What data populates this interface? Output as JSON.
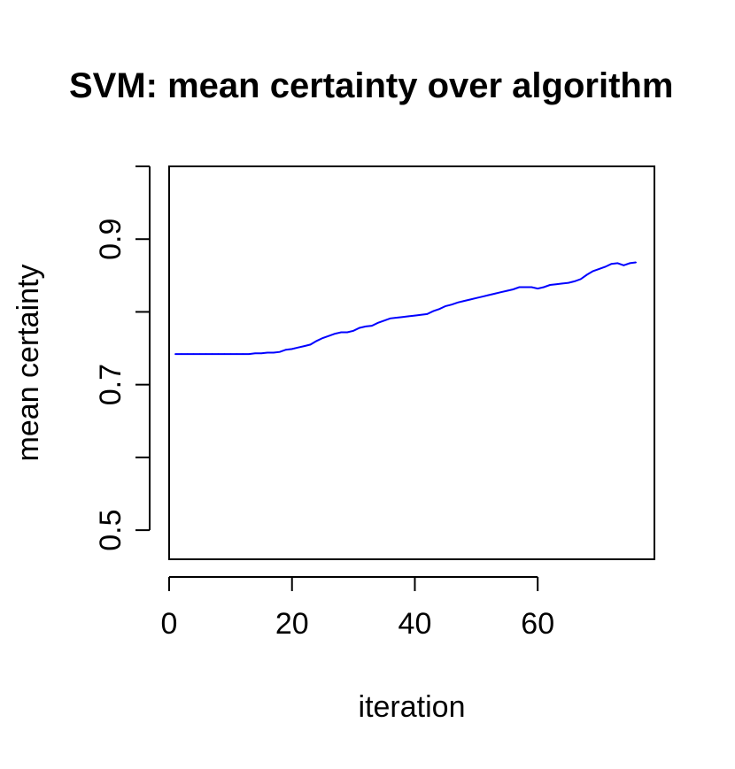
{
  "chart_data": {
    "type": "line",
    "title": "SVM: mean certainty over algorithm",
    "xlabel": "iteration",
    "ylabel": "mean certainty",
    "xlim": [
      0,
      79
    ],
    "ylim": [
      0.46,
      1.0
    ],
    "x_ticks": [
      0,
      20,
      40,
      60
    ],
    "y_ticks": [
      0.5,
      0.6,
      0.7,
      0.8,
      0.9,
      1.0
    ],
    "y_tick_labels": [
      "0.5",
      "",
      "0.7",
      "",
      "0.9",
      ""
    ],
    "grid": false,
    "line_color": "#0000ff",
    "series": [
      {
        "x": [
          1,
          2,
          3,
          4,
          5,
          6,
          7,
          8,
          9,
          10,
          11,
          12,
          13,
          14,
          15,
          16,
          17,
          18,
          19,
          20,
          21,
          22,
          23,
          24,
          25,
          26,
          27,
          28,
          29,
          30,
          31,
          32,
          33,
          34,
          35,
          36,
          37,
          38,
          39,
          40,
          41,
          42,
          43,
          44,
          45,
          46,
          47,
          48,
          49,
          50,
          51,
          52,
          53,
          54,
          55,
          56,
          57,
          58,
          59,
          60,
          61,
          62,
          63,
          64,
          65,
          66,
          67,
          68,
          69,
          70,
          71,
          72,
          73,
          74,
          75,
          76
        ],
        "values": [
          0.742,
          0.742,
          0.742,
          0.742,
          0.742,
          0.742,
          0.742,
          0.742,
          0.742,
          0.742,
          0.742,
          0.742,
          0.742,
          0.743,
          0.743,
          0.744,
          0.744,
          0.745,
          0.748,
          0.749,
          0.751,
          0.753,
          0.755,
          0.76,
          0.764,
          0.767,
          0.77,
          0.772,
          0.772,
          0.774,
          0.778,
          0.78,
          0.781,
          0.785,
          0.788,
          0.791,
          0.792,
          0.793,
          0.794,
          0.795,
          0.796,
          0.797,
          0.801,
          0.804,
          0.808,
          0.81,
          0.813,
          0.815,
          0.817,
          0.819,
          0.821,
          0.823,
          0.825,
          0.827,
          0.829,
          0.831,
          0.834,
          0.834,
          0.834,
          0.832,
          0.834,
          0.837,
          0.838,
          0.839,
          0.84,
          0.842,
          0.845,
          0.851,
          0.856,
          0.859,
          0.862,
          0.866,
          0.867,
          0.864,
          0.867,
          0.868
        ]
      }
    ]
  }
}
